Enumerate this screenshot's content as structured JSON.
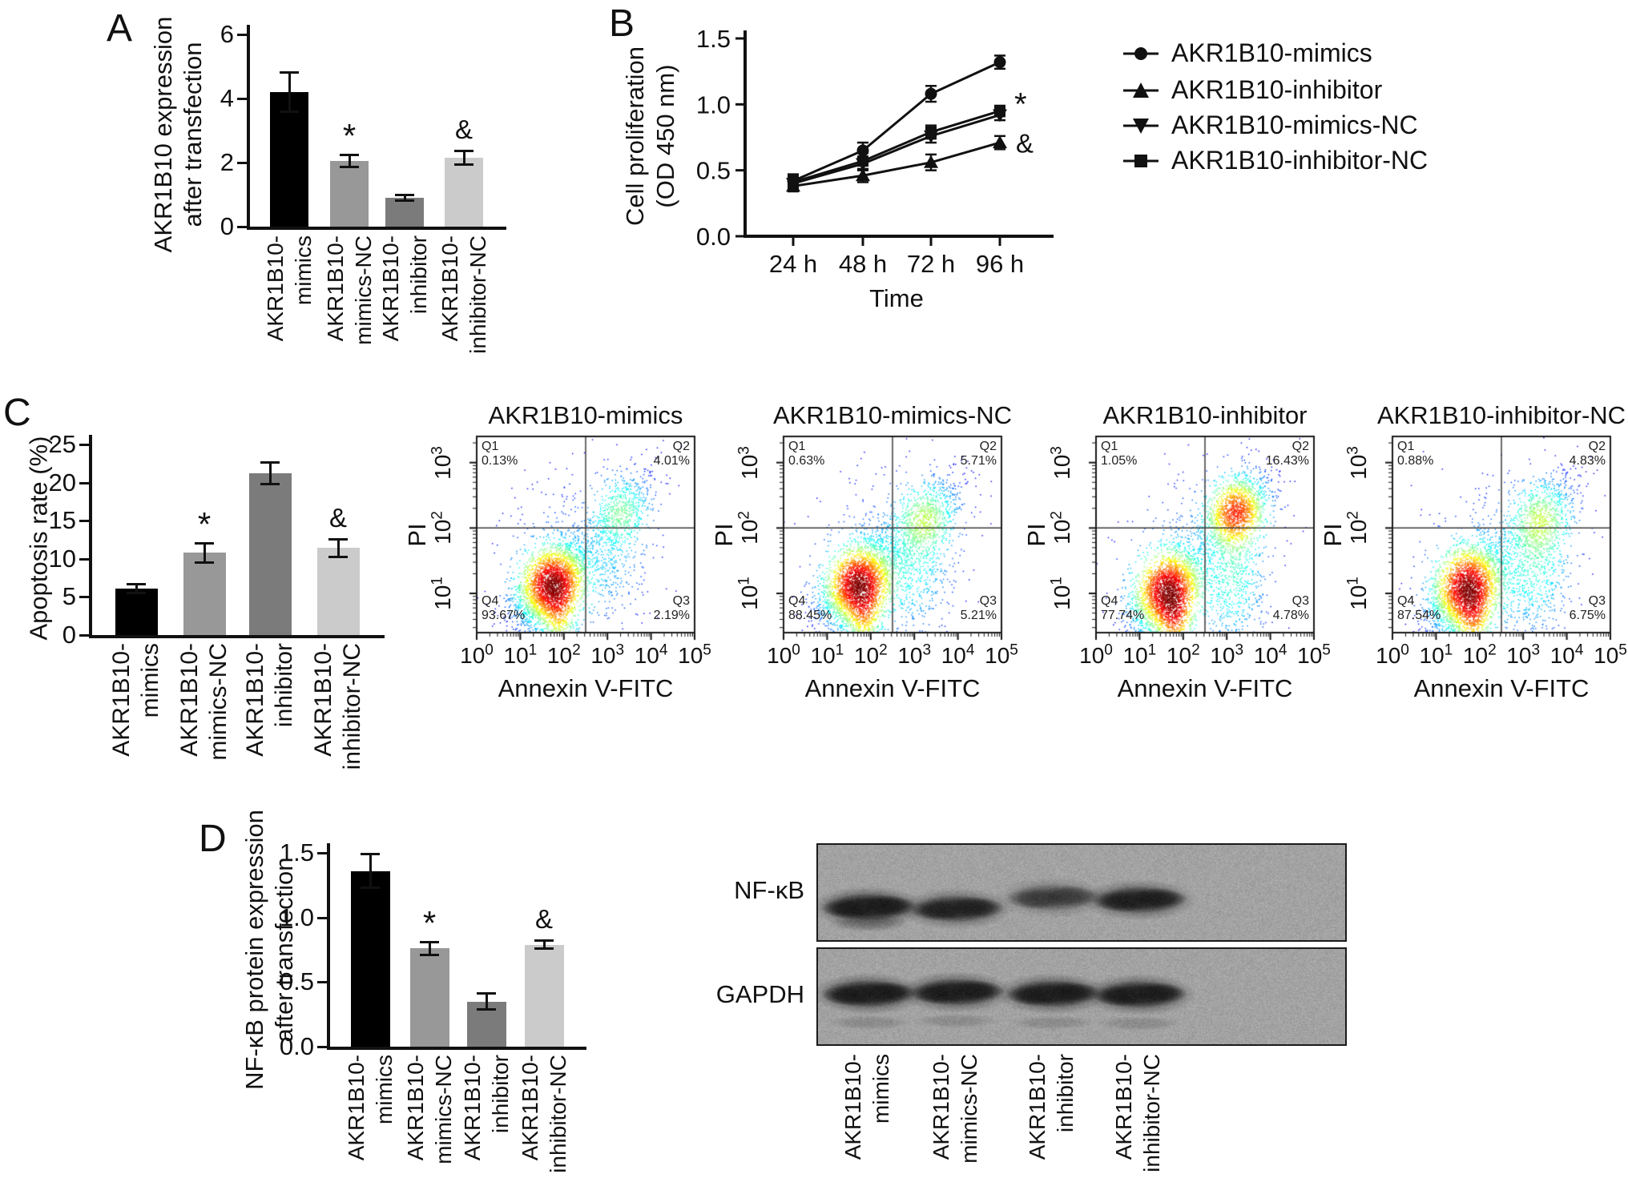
{
  "figure": {
    "background": "#ffffff",
    "bar_colors": [
      "#000000",
      "#989898",
      "#7b7b7b",
      "#cbcbcb"
    ],
    "axis_color": "#111111",
    "density_colormap": "jet"
  },
  "chart_data": [
    {
      "id": "panel-a",
      "type": "bar",
      "panel_letter": "A",
      "ylabel": "AKR1B10 expression\nafter transfection",
      "yticks": [
        "0",
        "2",
        "4",
        "6"
      ],
      "ylim": [
        0,
        6
      ],
      "categories": [
        "AKR1B10-\nmimics",
        "AKR1B10-\nmimics-NC",
        "AKR1B10-\ninhibitor",
        "AKR1B10-\ninhibitor-NC"
      ],
      "values": [
        4.2,
        2.05,
        0.9,
        2.15
      ],
      "errors": [
        0.65,
        0.22,
        0.13,
        0.25
      ],
      "sig": [
        "",
        "*",
        "",
        "&"
      ]
    },
    {
      "id": "panel-b",
      "type": "line",
      "panel_letter": "B",
      "ylabel": "Cell proliferation\n(OD 450 nm)",
      "xlabel": "Time",
      "yticks": [
        "0.0",
        "0.5",
        "1.0",
        "1.5"
      ],
      "ylim": [
        0,
        1.5
      ],
      "x_categories": [
        "24 h",
        "48 h",
        "72 h",
        "96 h"
      ],
      "series": [
        {
          "name": "AKR1B10-mimics",
          "marker": "circle",
          "values": [
            0.42,
            0.65,
            1.08,
            1.32
          ],
          "errors": [
            0.05,
            0.06,
            0.06,
            0.05
          ]
        },
        {
          "name": "AKR1B10-inhibitor",
          "marker": "triangle-up",
          "values": [
            0.38,
            0.46,
            0.56,
            0.71
          ],
          "errors": [
            0.04,
            0.05,
            0.06,
            0.05
          ]
        },
        {
          "name": "AKR1B10-mimics-NC",
          "marker": "triangle-down",
          "values": [
            0.4,
            0.55,
            0.76,
            0.92
          ],
          "errors": [
            0.05,
            0.05,
            0.05,
            0.04
          ]
        },
        {
          "name": "AKR1B10-inhibitor-NC",
          "marker": "square",
          "values": [
            0.41,
            0.57,
            0.79,
            0.95
          ],
          "errors": [
            0.05,
            0.06,
            0.05,
            0.04
          ]
        }
      ],
      "annotations": [
        {
          "text": "*",
          "at": "end-of-NC-lines"
        },
        {
          "text": "&",
          "at": "end-of-inhibitor-line"
        }
      ],
      "legend": [
        {
          "label": "AKR1B10-mimics",
          "marker": "circle"
        },
        {
          "label": "AKR1B10-inhibitor",
          "marker": "triangle-up"
        },
        {
          "label": "AKR1B10-mimics-NC",
          "marker": "triangle-down"
        },
        {
          "label": "AKR1B10-inhibitor-NC",
          "marker": "square"
        }
      ]
    },
    {
      "id": "panel-c-bar",
      "type": "bar",
      "panel_letter": "C",
      "ylabel": "Apoptosis rate (%)",
      "yticks": [
        "0",
        "5",
        "10",
        "15",
        "20",
        "25"
      ],
      "ylim": [
        0,
        25
      ],
      "categories": [
        "AKR1B10-\nmimics",
        "AKR1B10-\nmimics-NC",
        "AKR1B10-\ninhibitor",
        "AKR1B10-\ninhibitor-NC"
      ],
      "values": [
        6.1,
        10.8,
        21.2,
        11.4
      ],
      "errors": [
        0.7,
        1.4,
        1.6,
        1.3
      ],
      "sig": [
        "",
        "*",
        "",
        "&"
      ]
    },
    {
      "id": "panel-c-flow",
      "type": "scatter-density",
      "xlabel": "Annexin V-FITC",
      "ylabel": "PI",
      "x_tick_base": "10",
      "x_exponents": [
        "0",
        "1",
        "2",
        "3",
        "4",
        "5"
      ],
      "y_exponents": [
        "1",
        "2",
        "3"
      ],
      "plots": [
        {
          "title": "AKR1B10-mimics",
          "quadrants": {
            "q1_label": "Q1",
            "q1": "0.13%",
            "q2_label": "Q2",
            "q2": "4.01%",
            "q3_label": "Q3",
            "q3": "2.19%",
            "q4_label": "Q4",
            "q4": "93.67%"
          },
          "clusters": [
            {
              "x": 1.72,
              "y": 1.15,
              "sx": 0.42,
              "sy": 0.32,
              "rho": 0.45,
              "n": 3000
            },
            {
              "x": 1.88,
              "y": 0.62,
              "sx": 0.22,
              "sy": 0.3,
              "rho": 0.0,
              "n": 420
            },
            {
              "x": 3.3,
              "y": 2.25,
              "sx": 0.4,
              "sy": 0.32,
              "rho": 0.55,
              "n": 650
            },
            {
              "x": 3.05,
              "y": 1.45,
              "sx": 0.45,
              "sy": 0.45,
              "rho": 0.2,
              "n": 260
            },
            {
              "x": 2.2,
              "y": 1.55,
              "sx": 0.95,
              "sy": 0.75,
              "rho": 0.3,
              "n": 420
            }
          ]
        },
        {
          "title": "AKR1B10-mimics-NC",
          "quadrants": {
            "q1_label": "Q1",
            "q1": "0.63%",
            "q2_label": "Q2",
            "q2": "5.71%",
            "q3_label": "Q3",
            "q3": "5.21%",
            "q4_label": "Q4",
            "q4": "88.45%"
          },
          "clusters": [
            {
              "x": 1.7,
              "y": 1.15,
              "sx": 0.42,
              "sy": 0.33,
              "rho": 0.45,
              "n": 2800
            },
            {
              "x": 1.85,
              "y": 0.62,
              "sx": 0.22,
              "sy": 0.3,
              "rho": 0.0,
              "n": 430
            },
            {
              "x": 3.25,
              "y": 2.15,
              "sx": 0.42,
              "sy": 0.33,
              "rho": 0.5,
              "n": 820
            },
            {
              "x": 3.0,
              "y": 1.35,
              "sx": 0.45,
              "sy": 0.5,
              "rho": 0.2,
              "n": 500
            },
            {
              "x": 2.25,
              "y": 1.55,
              "sx": 0.95,
              "sy": 0.75,
              "rho": 0.3,
              "n": 450
            }
          ]
        },
        {
          "title": "AKR1B10-inhibitor",
          "quadrants": {
            "q1_label": "Q1",
            "q1": "1.05%",
            "q2_label": "Q2",
            "q2": "16.43%",
            "q3_label": "Q3",
            "q3": "4.78%",
            "q4_label": "Q4",
            "q4": "77.74%"
          },
          "clusters": [
            {
              "x": 1.62,
              "y": 1.05,
              "sx": 0.42,
              "sy": 0.35,
              "rho": 0.5,
              "n": 2600
            },
            {
              "x": 1.8,
              "y": 0.58,
              "sx": 0.22,
              "sy": 0.3,
              "rho": 0.0,
              "n": 480
            },
            {
              "x": 3.2,
              "y": 2.25,
              "sx": 0.38,
              "sy": 0.3,
              "rho": 0.4,
              "n": 1500
            },
            {
              "x": 3.15,
              "y": 1.25,
              "sx": 0.4,
              "sy": 0.55,
              "rho": 0.1,
              "n": 650
            },
            {
              "x": 2.3,
              "y": 1.55,
              "sx": 0.95,
              "sy": 0.8,
              "rho": 0.3,
              "n": 480
            }
          ]
        },
        {
          "title": "AKR1B10-inhibitor-NC",
          "quadrants": {
            "q1_label": "Q1",
            "q1": "0.88%",
            "q2_label": "Q2",
            "q2": "4.83%",
            "q3_label": "Q3",
            "q3": "6.75%",
            "q4_label": "Q4",
            "q4": "87.54%"
          },
          "clusters": [
            {
              "x": 1.7,
              "y": 1.1,
              "sx": 0.42,
              "sy": 0.35,
              "rho": 0.45,
              "n": 2800
            },
            {
              "x": 1.85,
              "y": 0.58,
              "sx": 0.22,
              "sy": 0.3,
              "rho": 0.0,
              "n": 430
            },
            {
              "x": 3.4,
              "y": 2.15,
              "sx": 0.42,
              "sy": 0.33,
              "rho": 0.5,
              "n": 780
            },
            {
              "x": 3.25,
              "y": 1.35,
              "sx": 0.45,
              "sy": 0.5,
              "rho": 0.2,
              "n": 650
            },
            {
              "x": 2.3,
              "y": 1.5,
              "sx": 0.95,
              "sy": 0.75,
              "rho": 0.3,
              "n": 450
            }
          ]
        }
      ]
    },
    {
      "id": "panel-d-bar",
      "type": "bar",
      "panel_letter": "D",
      "ylabel": "NF-κB protein expression\nafter transfection",
      "yticks": [
        "0.0",
        "0.5",
        "1.0",
        "1.5"
      ],
      "ylim": [
        0,
        1.5
      ],
      "categories": [
        "AKR1B10-\nmimics",
        "AKR1B10-\nmimics-NC",
        "AKR1B10-\ninhibitor",
        "AKR1B10-\ninhibitor-NC"
      ],
      "values": [
        1.36,
        0.76,
        0.35,
        0.79
      ],
      "errors": [
        0.14,
        0.06,
        0.07,
        0.04
      ],
      "sig": [
        "",
        "*",
        "",
        "&"
      ]
    },
    {
      "id": "panel-d-blot",
      "type": "western-blot",
      "rows": [
        {
          "label": "NF-κB",
          "band_intensities": [
            0.97,
            0.8,
            0.48,
            0.85
          ]
        },
        {
          "label": "GAPDH",
          "band_intensities": [
            0.97,
            0.95,
            0.96,
            0.94
          ]
        }
      ],
      "lane_labels": [
        "AKR1B10-\nmimics",
        "AKR1B10-\nmimics-NC",
        "AKR1B10-\ninhibitor",
        "AKR1B10-\ninhibitor-NC"
      ]
    }
  ]
}
